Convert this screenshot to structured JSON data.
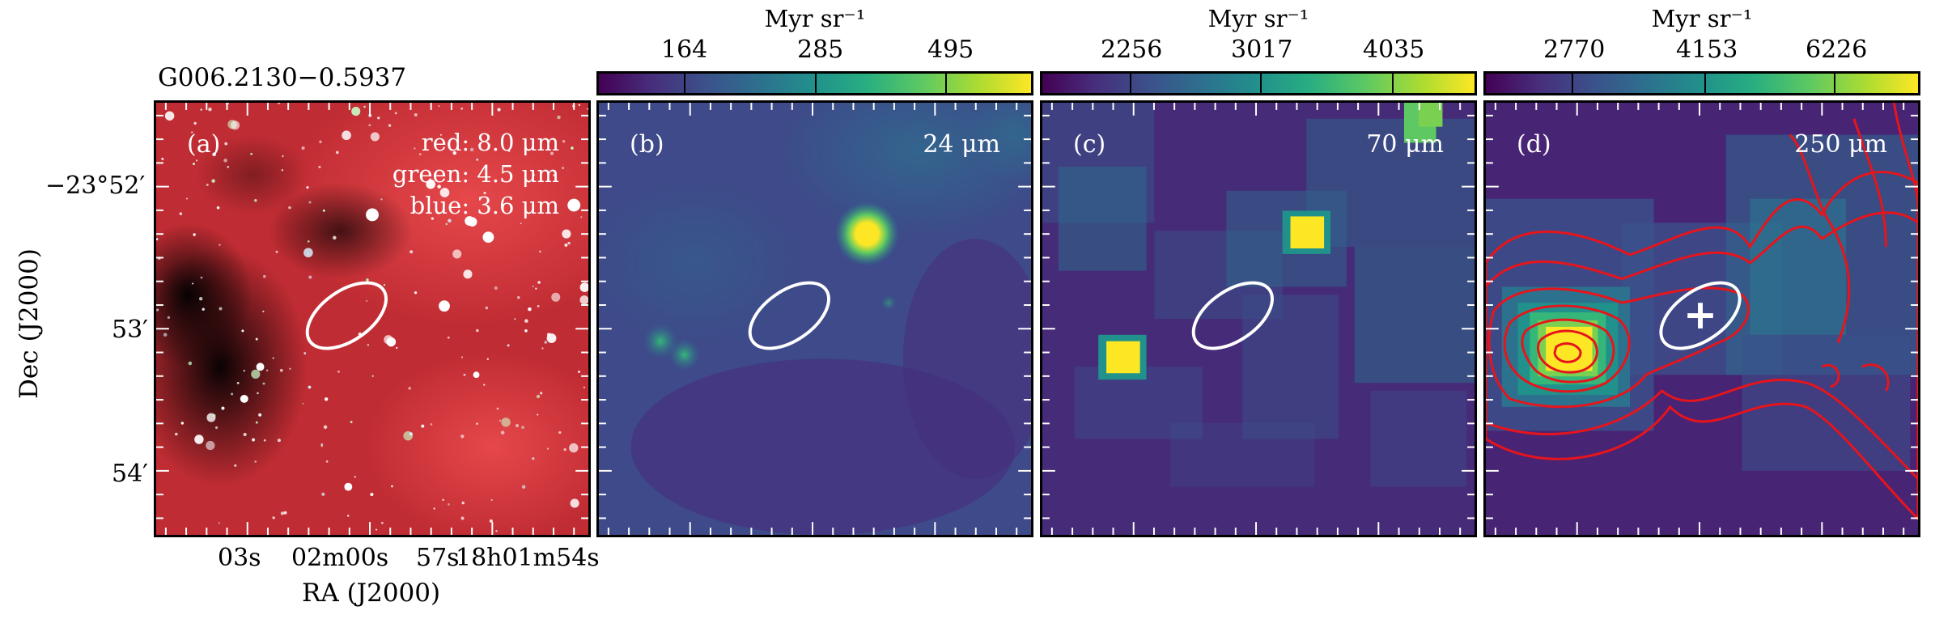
{
  "source_name": "G006.2130−0.5937",
  "panels": [
    {
      "label": "(a)",
      "legend": [
        "red: 8.0 μm",
        "green: 4.5 μm",
        "blue: 3.6 μm"
      ]
    },
    {
      "label": "(b)",
      "wavelength": "24 μm"
    },
    {
      "label": "(c)",
      "wavelength": "70 μm"
    },
    {
      "label": "(d)",
      "wavelength": "250 μm"
    }
  ],
  "colorbars": [
    {
      "title": "Myr sr⁻¹",
      "ticks": [
        "164",
        "285",
        "495"
      ]
    },
    {
      "title": "Myr sr⁻¹",
      "ticks": [
        "2256",
        "3017",
        "4035"
      ]
    },
    {
      "title": "Myr sr⁻¹",
      "ticks": [
        "2770",
        "4153",
        "6226"
      ]
    }
  ],
  "axes": {
    "ylabel": "Dec (J2000)",
    "xlabel": "RA (J2000)",
    "dec_ticks": [
      "−23°52′",
      "53′",
      "54′"
    ],
    "ra_ticks": [
      "03s",
      "02m00s",
      "57s",
      "18h01m54s"
    ]
  },
  "colors": {
    "contour": "#e8141b",
    "ellipse": "#ffffff",
    "viridis_low": "#440154",
    "viridis_high": "#fde725"
  }
}
